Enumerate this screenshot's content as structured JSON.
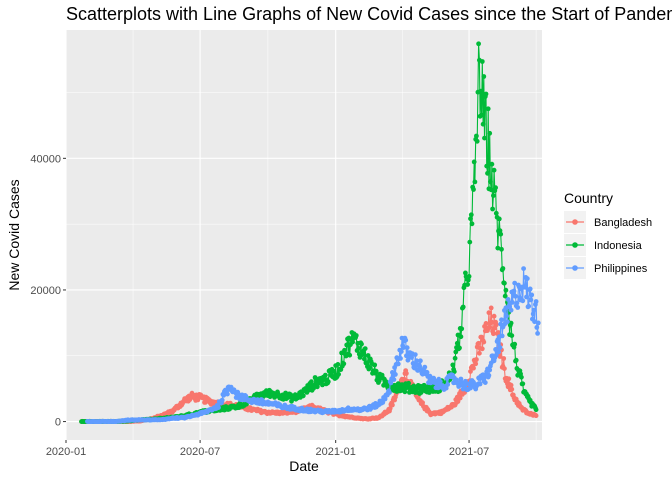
{
  "chart_data": {
    "type": "line",
    "title": "Scatterplots with Line Graphs of New Covid Cases since the Start of Pandemic",
    "xlabel": "Date",
    "ylabel": "New Covid Cases",
    "x_range": [
      "2020-01-01",
      "2021-10-08"
    ],
    "ylim": [
      -2800,
      59500
    ],
    "x_ticks": [
      {
        "date": "2020-01-01",
        "label": "2020-01"
      },
      {
        "date": "2020-07-01",
        "label": "2020-07"
      },
      {
        "date": "2021-01-01",
        "label": "2021-01"
      },
      {
        "date": "2021-07-01",
        "label": "2021-07"
      }
    ],
    "y_ticks": [
      {
        "value": 0,
        "label": "0"
      },
      {
        "value": 20000,
        "label": "20000"
      },
      {
        "value": 40000,
        "label": "40000"
      }
    ],
    "panel_background": "#ebebeb",
    "grid": true,
    "markers": "points joined by lines",
    "legend": {
      "title": "Country",
      "position": "right"
    },
    "series": [
      {
        "name": "Bangladesh",
        "color": "#F8766D",
        "points": [
          [
            "2020-01-22",
            0
          ],
          [
            "2020-03-08",
            0
          ],
          [
            "2020-03-25",
            10
          ],
          [
            "2020-04-10",
            100
          ],
          [
            "2020-04-25",
            400
          ],
          [
            "2020-05-10",
            900
          ],
          [
            "2020-05-25",
            1600
          ],
          [
            "2020-06-10",
            3200
          ],
          [
            "2020-06-20",
            3800
          ],
          [
            "2020-07-01",
            3600
          ],
          [
            "2020-07-15",
            3000
          ],
          [
            "2020-08-01",
            2600
          ],
          [
            "2020-08-20",
            2400
          ],
          [
            "2020-09-10",
            1800
          ],
          [
            "2020-09-30",
            1400
          ],
          [
            "2020-10-20",
            1300
          ],
          [
            "2020-11-10",
            1600
          ],
          [
            "2020-11-30",
            2200
          ],
          [
            "2020-12-15",
            1700
          ],
          [
            "2021-01-01",
            1100
          ],
          [
            "2021-01-20",
            700
          ],
          [
            "2021-02-10",
            400
          ],
          [
            "2021-03-01",
            600
          ],
          [
            "2021-03-15",
            1800
          ],
          [
            "2021-03-28",
            5000
          ],
          [
            "2021-04-05",
            7500
          ],
          [
            "2021-04-15",
            5000
          ],
          [
            "2021-04-25",
            3000
          ],
          [
            "2021-05-10",
            1200
          ],
          [
            "2021-05-25",
            1400
          ],
          [
            "2021-06-10",
            2500
          ],
          [
            "2021-06-25",
            5000
          ],
          [
            "2021-07-05",
            8000
          ],
          [
            "2021-07-15",
            11000
          ],
          [
            "2021-07-25",
            14000
          ],
          [
            "2021-08-01",
            15500
          ],
          [
            "2021-08-10",
            12000
          ],
          [
            "2021-08-20",
            7000
          ],
          [
            "2021-08-30",
            4000
          ],
          [
            "2021-09-10",
            2000
          ],
          [
            "2021-09-20",
            1200
          ],
          [
            "2021-09-30",
            900
          ]
        ]
      },
      {
        "name": "Indonesia",
        "color": "#00BA38",
        "points": [
          [
            "2020-01-22",
            0
          ],
          [
            "2020-03-02",
            0
          ],
          [
            "2020-03-20",
            60
          ],
          [
            "2020-04-05",
            200
          ],
          [
            "2020-04-20",
            300
          ],
          [
            "2020-05-05",
            400
          ],
          [
            "2020-05-20",
            600
          ],
          [
            "2020-06-05",
            800
          ],
          [
            "2020-06-20",
            1100
          ],
          [
            "2020-07-05",
            1500
          ],
          [
            "2020-07-20",
            1700
          ],
          [
            "2020-08-05",
            2000
          ],
          [
            "2020-08-20",
            2300
          ],
          [
            "2020-09-05",
            3000
          ],
          [
            "2020-09-20",
            4000
          ],
          [
            "2020-10-05",
            4300
          ],
          [
            "2020-10-20",
            4000
          ],
          [
            "2020-11-05",
            3500
          ],
          [
            "2020-11-20",
            4500
          ],
          [
            "2020-12-05",
            6000
          ],
          [
            "2020-12-20",
            6500
          ],
          [
            "2021-01-05",
            8000
          ],
          [
            "2021-01-15",
            11000
          ],
          [
            "2021-01-25",
            12500
          ],
          [
            "2021-02-05",
            11000
          ],
          [
            "2021-02-15",
            9000
          ],
          [
            "2021-03-01",
            6500
          ],
          [
            "2021-03-15",
            5500
          ],
          [
            "2021-04-01",
            5200
          ],
          [
            "2021-04-20",
            5000
          ],
          [
            "2021-05-05",
            5000
          ],
          [
            "2021-05-20",
            5200
          ],
          [
            "2021-06-01",
            6000
          ],
          [
            "2021-06-10",
            8000
          ],
          [
            "2021-06-20",
            14000
          ],
          [
            "2021-07-01",
            25000
          ],
          [
            "2021-07-08",
            35000
          ],
          [
            "2021-07-15",
            54000
          ],
          [
            "2021-07-20",
            47000
          ],
          [
            "2021-07-27",
            42000
          ],
          [
            "2021-08-05",
            33000
          ],
          [
            "2021-08-15",
            25000
          ],
          [
            "2021-08-25",
            15000
          ],
          [
            "2021-09-05",
            8000
          ],
          [
            "2021-09-15",
            4000
          ],
          [
            "2021-09-25",
            2500
          ],
          [
            "2021-09-30",
            1800
          ]
        ]
      },
      {
        "name": "Philippines",
        "color": "#619CFF",
        "points": [
          [
            "2020-01-30",
            0
          ],
          [
            "2020-03-10",
            10
          ],
          [
            "2020-03-25",
            200
          ],
          [
            "2020-04-10",
            250
          ],
          [
            "2020-04-25",
            250
          ],
          [
            "2020-05-10",
            300
          ],
          [
            "2020-05-25",
            500
          ],
          [
            "2020-06-10",
            600
          ],
          [
            "2020-06-25",
            1000
          ],
          [
            "2020-07-10",
            1500
          ],
          [
            "2020-07-25",
            2300
          ],
          [
            "2020-08-05",
            4500
          ],
          [
            "2020-08-12",
            5500
          ],
          [
            "2020-08-20",
            4000
          ],
          [
            "2020-09-05",
            3300
          ],
          [
            "2020-09-20",
            3000
          ],
          [
            "2020-10-05",
            2700
          ],
          [
            "2020-10-20",
            2300
          ],
          [
            "2020-11-05",
            2000
          ],
          [
            "2020-11-20",
            1800
          ],
          [
            "2020-12-05",
            1600
          ],
          [
            "2020-12-20",
            1500
          ],
          [
            "2021-01-05",
            1600
          ],
          [
            "2021-01-20",
            1900
          ],
          [
            "2021-02-05",
            1800
          ],
          [
            "2021-02-20",
            2200
          ],
          [
            "2021-03-05",
            3000
          ],
          [
            "2021-03-15",
            5000
          ],
          [
            "2021-03-25",
            9000
          ],
          [
            "2021-04-02",
            12000
          ],
          [
            "2021-04-10",
            10000
          ],
          [
            "2021-04-25",
            8500
          ],
          [
            "2021-05-10",
            6000
          ],
          [
            "2021-05-25",
            5500
          ],
          [
            "2021-06-10",
            6500
          ],
          [
            "2021-06-25",
            5500
          ],
          [
            "2021-07-10",
            5500
          ],
          [
            "2021-07-25",
            7000
          ],
          [
            "2021-08-05",
            10000
          ],
          [
            "2021-08-15",
            14000
          ],
          [
            "2021-08-25",
            17000
          ],
          [
            "2021-09-05",
            20000
          ],
          [
            "2021-09-12",
            21000
          ],
          [
            "2021-09-20",
            19000
          ],
          [
            "2021-09-28",
            17000
          ],
          [
            "2021-10-03",
            15000
          ]
        ]
      }
    ]
  }
}
